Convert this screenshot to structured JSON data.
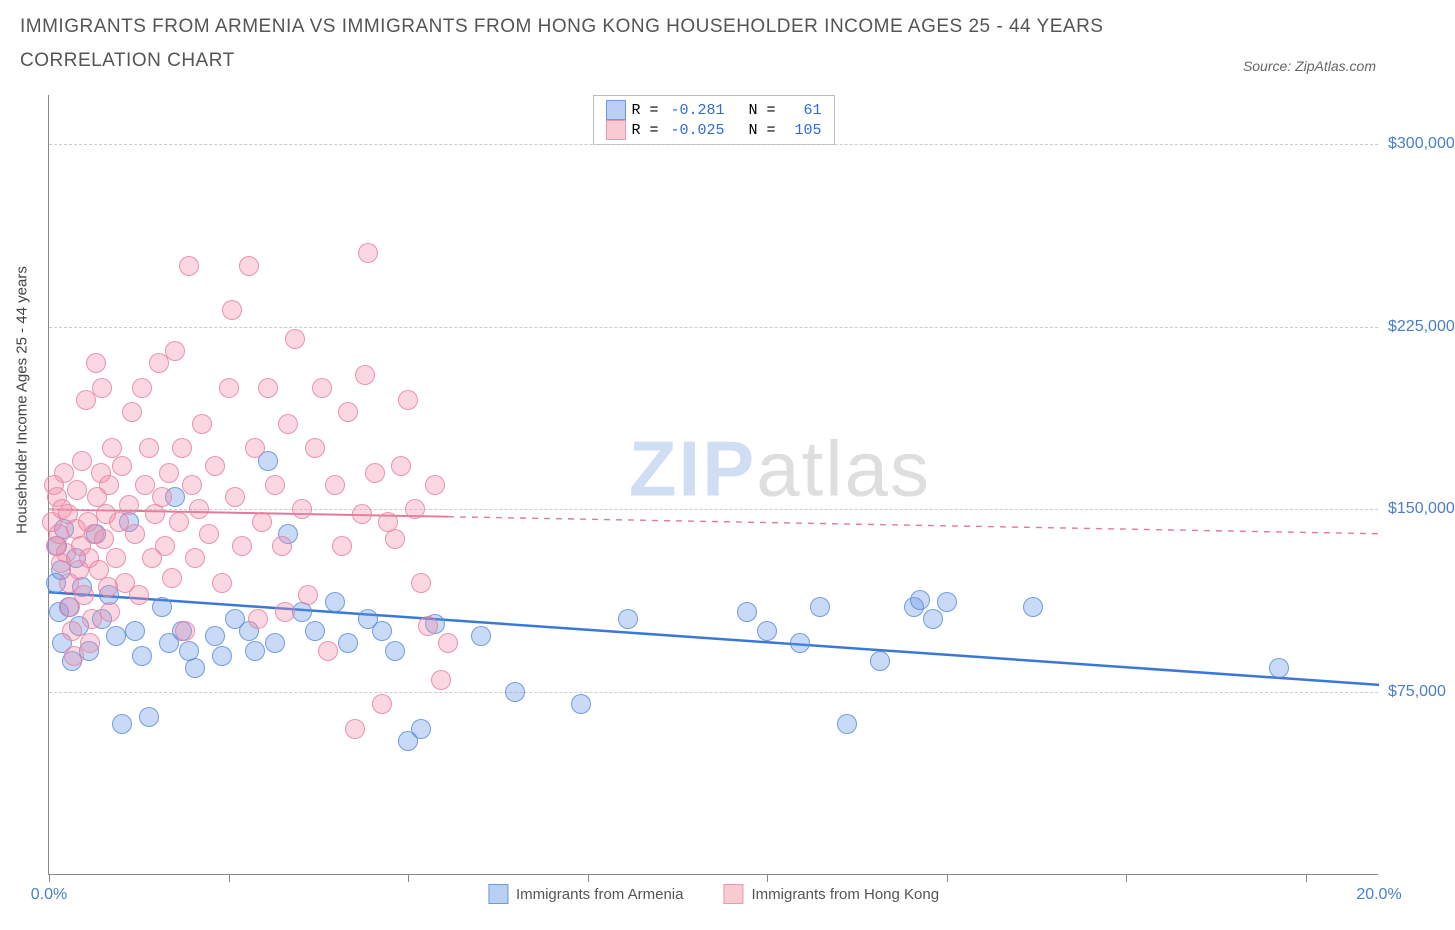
{
  "title": "IMMIGRANTS FROM ARMENIA VS IMMIGRANTS FROM HONG KONG HOUSEHOLDER INCOME AGES 25 - 44 YEARS CORRELATION CHART",
  "source": "Source: ZipAtlas.com",
  "yaxis_label": "Householder Income Ages 25 - 44 years",
  "watermark_a": "ZIP",
  "watermark_b": "atlas",
  "chart": {
    "type": "scatter",
    "xlim": [
      0,
      20
    ],
    "ylim": [
      0,
      320000
    ],
    "x_ticks_pct": [
      0,
      2.7,
      5.4,
      8.1,
      10.8,
      13.5,
      16.2,
      18.9
    ],
    "x_labels": {
      "0": "0.0%",
      "20": "20.0%"
    },
    "y_gridlines": [
      75000,
      150000,
      225000,
      300000
    ],
    "y_labels": {
      "75000": "$75,000",
      "150000": "$150,000",
      "225000": "$225,000",
      "300000": "$300,000"
    },
    "background_color": "#ffffff",
    "grid_color": "#cccccc",
    "axis_color": "#888888",
    "label_color": "#4a7ec9",
    "title_color": "#555555",
    "title_fontsize": 19,
    "label_fontsize": 16,
    "point_radius": 10,
    "series": [
      {
        "name": "Immigrants from Armenia",
        "color_fill": "rgba(100,150,230,0.35)",
        "color_stroke": "rgba(90,140,220,0.8)",
        "R": "-0.281",
        "N": "61",
        "trend": {
          "y_at_x0": 116000,
          "y_at_x20": 78000,
          "solid_until_x": 20,
          "stroke": "#3a78d8",
          "width": 2.5
        },
        "points": [
          [
            0.1,
            120000
          ],
          [
            0.12,
            135000
          ],
          [
            0.15,
            108000
          ],
          [
            0.18,
            125000
          ],
          [
            0.2,
            95000
          ],
          [
            0.22,
            142000
          ],
          [
            0.3,
            110000
          ],
          [
            0.35,
            88000
          ],
          [
            0.4,
            130000
          ],
          [
            0.45,
            102000
          ],
          [
            0.5,
            118000
          ],
          [
            0.6,
            92000
          ],
          [
            0.7,
            140000
          ],
          [
            0.8,
            105000
          ],
          [
            0.9,
            115000
          ],
          [
            1.0,
            98000
          ],
          [
            1.1,
            62000
          ],
          [
            1.2,
            145000
          ],
          [
            1.3,
            100000
          ],
          [
            1.4,
            90000
          ],
          [
            1.5,
            65000
          ],
          [
            1.7,
            110000
          ],
          [
            1.8,
            95000
          ],
          [
            1.9,
            155000
          ],
          [
            2.0,
            100000
          ],
          [
            2.1,
            92000
          ],
          [
            2.2,
            85000
          ],
          [
            2.5,
            98000
          ],
          [
            2.6,
            90000
          ],
          [
            2.8,
            105000
          ],
          [
            3.0,
            100000
          ],
          [
            3.1,
            92000
          ],
          [
            3.3,
            170000
          ],
          [
            3.4,
            95000
          ],
          [
            3.6,
            140000
          ],
          [
            3.8,
            108000
          ],
          [
            4.0,
            100000
          ],
          [
            4.3,
            112000
          ],
          [
            4.5,
            95000
          ],
          [
            4.8,
            105000
          ],
          [
            5.0,
            100000
          ],
          [
            5.2,
            92000
          ],
          [
            5.4,
            55000
          ],
          [
            5.6,
            60000
          ],
          [
            5.8,
            103000
          ],
          [
            6.5,
            98000
          ],
          [
            7.0,
            75000
          ],
          [
            8.0,
            70000
          ],
          [
            8.7,
            105000
          ],
          [
            10.5,
            108000
          ],
          [
            10.8,
            100000
          ],
          [
            11.3,
            95000
          ],
          [
            11.6,
            110000
          ],
          [
            12.5,
            88000
          ],
          [
            13.0,
            110000
          ],
          [
            13.1,
            113000
          ],
          [
            13.3,
            105000
          ],
          [
            13.5,
            112000
          ],
          [
            12.0,
            62000
          ],
          [
            14.8,
            110000
          ],
          [
            18.5,
            85000
          ]
        ]
      },
      {
        "name": "Immigrants from Hong Kong",
        "color_fill": "rgba(240,140,170,0.35)",
        "color_stroke": "rgba(230,130,160,0.8)",
        "R": "-0.025",
        "N": "105",
        "trend": {
          "y_at_x0": 150000,
          "y_at_x20": 140000,
          "solid_until_x": 6,
          "stroke": "#e07a9a",
          "width": 2
        },
        "points": [
          [
            0.05,
            145000
          ],
          [
            0.08,
            160000
          ],
          [
            0.1,
            135000
          ],
          [
            0.12,
            155000
          ],
          [
            0.15,
            140000
          ],
          [
            0.18,
            128000
          ],
          [
            0.2,
            150000
          ],
          [
            0.22,
            165000
          ],
          [
            0.25,
            132000
          ],
          [
            0.28,
            148000
          ],
          [
            0.3,
            120000
          ],
          [
            0.32,
            110000
          ],
          [
            0.35,
            100000
          ],
          [
            0.38,
            90000
          ],
          [
            0.4,
            142000
          ],
          [
            0.42,
            158000
          ],
          [
            0.45,
            125000
          ],
          [
            0.48,
            135000
          ],
          [
            0.5,
            170000
          ],
          [
            0.52,
            115000
          ],
          [
            0.55,
            195000
          ],
          [
            0.58,
            145000
          ],
          [
            0.6,
            130000
          ],
          [
            0.62,
            95000
          ],
          [
            0.65,
            105000
          ],
          [
            0.68,
            140000
          ],
          [
            0.7,
            210000
          ],
          [
            0.72,
            155000
          ],
          [
            0.75,
            125000
          ],
          [
            0.78,
            165000
          ],
          [
            0.8,
            200000
          ],
          [
            0.82,
            138000
          ],
          [
            0.85,
            148000
          ],
          [
            0.88,
            118000
          ],
          [
            0.9,
            160000
          ],
          [
            0.92,
            108000
          ],
          [
            0.95,
            175000
          ],
          [
            1.0,
            130000
          ],
          [
            1.05,
            145000
          ],
          [
            1.1,
            168000
          ],
          [
            1.15,
            120000
          ],
          [
            1.2,
            152000
          ],
          [
            1.25,
            190000
          ],
          [
            1.3,
            140000
          ],
          [
            1.35,
            115000
          ],
          [
            1.4,
            200000
          ],
          [
            1.45,
            160000
          ],
          [
            1.5,
            175000
          ],
          [
            1.55,
            130000
          ],
          [
            1.6,
            148000
          ],
          [
            1.65,
            210000
          ],
          [
            1.7,
            155000
          ],
          [
            1.75,
            135000
          ],
          [
            1.8,
            165000
          ],
          [
            1.85,
            122000
          ],
          [
            1.9,
            215000
          ],
          [
            1.95,
            145000
          ],
          [
            2.0,
            175000
          ],
          [
            2.05,
            100000
          ],
          [
            2.1,
            250000
          ],
          [
            2.15,
            160000
          ],
          [
            2.2,
            130000
          ],
          [
            2.25,
            150000
          ],
          [
            2.3,
            185000
          ],
          [
            2.4,
            140000
          ],
          [
            2.5,
            168000
          ],
          [
            2.6,
            120000
          ],
          [
            2.7,
            200000
          ],
          [
            2.75,
            232000
          ],
          [
            2.8,
            155000
          ],
          [
            2.9,
            135000
          ],
          [
            3.0,
            250000
          ],
          [
            3.1,
            175000
          ],
          [
            3.15,
            105000
          ],
          [
            3.2,
            145000
          ],
          [
            3.3,
            200000
          ],
          [
            3.4,
            160000
          ],
          [
            3.5,
            135000
          ],
          [
            3.6,
            185000
          ],
          [
            3.7,
            220000
          ],
          [
            3.8,
            150000
          ],
          [
            3.9,
            115000
          ],
          [
            4.0,
            175000
          ],
          [
            4.1,
            200000
          ],
          [
            4.2,
            92000
          ],
          [
            4.3,
            160000
          ],
          [
            4.4,
            135000
          ],
          [
            4.5,
            190000
          ],
          [
            4.6,
            60000
          ],
          [
            4.7,
            148000
          ],
          [
            4.75,
            205000
          ],
          [
            4.8,
            255000
          ],
          [
            4.9,
            165000
          ],
          [
            5.0,
            70000
          ],
          [
            5.1,
            145000
          ],
          [
            5.2,
            138000
          ],
          [
            5.3,
            168000
          ],
          [
            5.4,
            195000
          ],
          [
            5.5,
            150000
          ],
          [
            5.6,
            120000
          ],
          [
            5.7,
            102000
          ],
          [
            5.8,
            160000
          ],
          [
            5.9,
            80000
          ],
          [
            6.0,
            95000
          ],
          [
            3.55,
            108000
          ]
        ]
      }
    ]
  },
  "stats_legend": {
    "rows": [
      {
        "swatch": "blue",
        "R": "-0.281",
        "N": "61"
      },
      {
        "swatch": "pink",
        "R": "-0.025",
        "N": "105"
      }
    ]
  },
  "bottom_legend": [
    {
      "swatch": "blue",
      "label": "Immigrants from Armenia"
    },
    {
      "swatch": "pink",
      "label": "Immigrants from Hong Kong"
    }
  ]
}
